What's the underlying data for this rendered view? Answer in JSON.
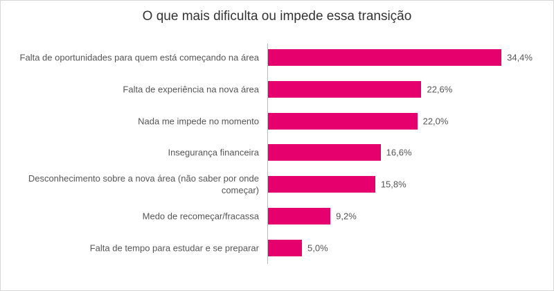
{
  "chart_data": {
    "type": "bar",
    "orientation": "horizontal",
    "title": "O que mais dificulta ou impede essa transição",
    "categories": [
      "Falta de oportunidades para quem está começando na área",
      "Falta de experiência na nova área",
      "Nada me impede no momento",
      "Insegurança financeira",
      "Desconhecimento sobre a nova área (não saber por onde começar)",
      "Medo de recomeçar/fracassa",
      "Falta de tempo para estudar e se preparar"
    ],
    "values": [
      34.4,
      22.6,
      22.0,
      16.6,
      15.8,
      9.2,
      5.0
    ],
    "value_labels": [
      "34,4%",
      "22,6%",
      "22,0%",
      "16,6%",
      "15,8%",
      "9,2%",
      "5,0%"
    ],
    "color": "#e6006e"
  }
}
